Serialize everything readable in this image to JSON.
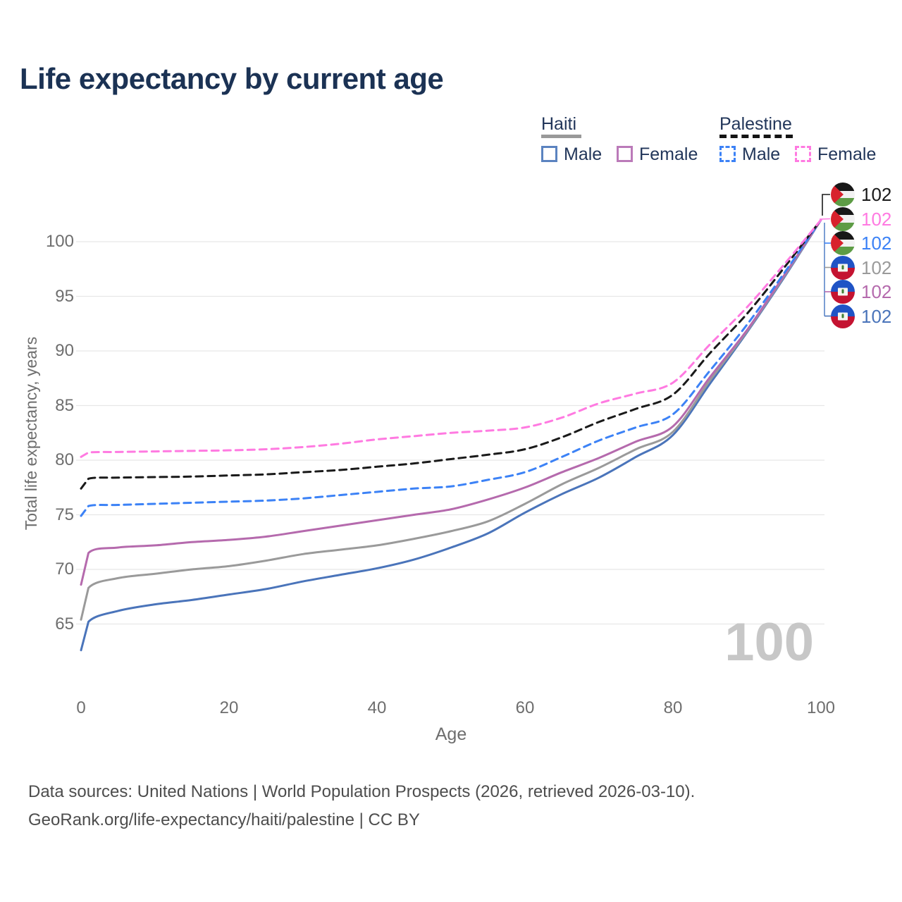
{
  "title": "Life expectancy by current age",
  "legend": {
    "groups": [
      {
        "label": "Haiti",
        "line_style": "solid",
        "line_color": "#999999",
        "items": [
          {
            "label": "Male",
            "box_color": "#5b83c0",
            "box_style": "solid"
          },
          {
            "label": "Female",
            "box_color": "#bb7ab9",
            "box_style": "solid"
          }
        ]
      },
      {
        "label": "Palestine",
        "line_style": "dashed",
        "line_color": "#141414",
        "items": [
          {
            "label": "Male",
            "box_color": "#3c82f6",
            "box_style": "dashed"
          },
          {
            "label": "Female",
            "box_color": "#ff7ae1",
            "box_style": "dashed"
          }
        ]
      }
    ]
  },
  "watermark": "100",
  "footer": {
    "line1": "Data sources: United Nations | World Population Prospects (2026, retrieved 2026-03-10).",
    "line2": "GeoRank.org/life-expectancy/haiti/palestine | CC BY"
  },
  "end_labels": [
    {
      "flag": "palestine",
      "value": "102",
      "color": "#1a1a1a"
    },
    {
      "flag": "palestine",
      "value": "102",
      "color": "#ff7ae1"
    },
    {
      "flag": "palestine",
      "value": "102",
      "color": "#3c82f6"
    },
    {
      "flag": "haiti",
      "value": "102",
      "color": "#9a9a9a"
    },
    {
      "flag": "haiti",
      "value": "102",
      "color": "#b56aad"
    },
    {
      "flag": "haiti",
      "value": "102",
      "color": "#4a74ba"
    }
  ],
  "chart_data": {
    "type": "line",
    "title": "Life expectancy by current age",
    "xlabel": "Age",
    "ylabel": "Total life expectancy, years",
    "x_ticks": [
      0,
      20,
      40,
      60,
      80,
      100
    ],
    "y_ticks": [
      65,
      70,
      75,
      80,
      85,
      90,
      95,
      100
    ],
    "xlim": [
      0,
      100
    ],
    "ylim": [
      62,
      103
    ],
    "grid": "horizontal",
    "legend_position": "top-right",
    "ages": [
      0,
      1,
      5,
      10,
      15,
      20,
      25,
      30,
      35,
      40,
      45,
      50,
      55,
      60,
      65,
      70,
      75,
      80,
      85,
      90,
      95,
      100
    ],
    "series": [
      {
        "id": "haiti-male",
        "name": "Haiti Male",
        "color": "#4a74ba",
        "dash": false,
        "values": [
          62.6,
          65.2,
          66.2,
          66.8,
          67.2,
          67.7,
          68.2,
          68.9,
          69.5,
          70.1,
          70.9,
          72.0,
          73.3,
          75.2,
          76.9,
          78.4,
          80.3,
          82.3,
          87.0,
          91.7,
          96.7,
          102
        ]
      },
      {
        "id": "haiti-total",
        "name": "Haiti",
        "color": "#9a9a9a",
        "dash": false,
        "values": [
          65.4,
          68.3,
          69.2,
          69.6,
          70.0,
          70.3,
          70.8,
          71.4,
          71.8,
          72.2,
          72.8,
          73.5,
          74.4,
          76.0,
          77.8,
          79.3,
          81.0,
          82.6,
          87.3,
          91.8,
          96.8,
          102
        ]
      },
      {
        "id": "haiti-female",
        "name": "Haiti Female",
        "color": "#b56aad",
        "dash": false,
        "values": [
          68.6,
          71.5,
          72.0,
          72.2,
          72.5,
          72.7,
          73.0,
          73.5,
          74.0,
          74.5,
          75.0,
          75.5,
          76.4,
          77.5,
          78.9,
          80.2,
          81.7,
          83.1,
          87.6,
          91.9,
          96.9,
          102
        ]
      },
      {
        "id": "palestine-male",
        "name": "Palestine Male",
        "color": "#3c82f6",
        "dash": true,
        "values": [
          74.9,
          75.8,
          75.9,
          76.0,
          76.1,
          76.2,
          76.3,
          76.5,
          76.8,
          77.1,
          77.4,
          77.6,
          78.2,
          78.9,
          80.3,
          81.8,
          83.0,
          84.2,
          88.2,
          92.4,
          97.1,
          102
        ]
      },
      {
        "id": "palestine-total",
        "name": "Palestine",
        "color": "#1a1a1a",
        "dash": true,
        "values": [
          77.4,
          78.3,
          78.4,
          78.45,
          78.5,
          78.6,
          78.7,
          78.9,
          79.1,
          79.4,
          79.7,
          80.1,
          80.5,
          81.0,
          82.1,
          83.5,
          84.7,
          86.0,
          89.8,
          93.4,
          97.6,
          102
        ]
      },
      {
        "id": "palestine-female",
        "name": "Palestine Female",
        "color": "#ff7ae1",
        "dash": true,
        "values": [
          80.3,
          80.7,
          80.75,
          80.8,
          80.85,
          80.9,
          81.0,
          81.2,
          81.5,
          81.9,
          82.2,
          82.5,
          82.7,
          83.0,
          83.9,
          85.2,
          86.1,
          87.1,
          90.6,
          94.0,
          97.9,
          102
        ]
      }
    ]
  }
}
